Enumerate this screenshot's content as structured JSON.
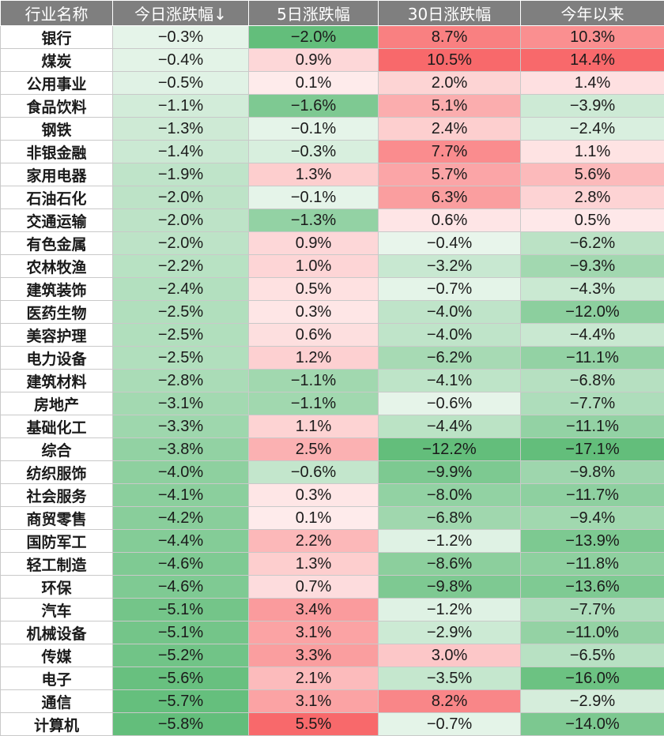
{
  "chart_data": {
    "type": "table",
    "columns": [
      "行业名称",
      "今日涨跌幅↓",
      "5日涨跌幅",
      "30日涨跌幅",
      "今年以来"
    ],
    "rows": [
      [
        "银行",
        "−0.3%",
        "−2.0%",
        "8.7%",
        "10.3%"
      ],
      [
        "煤炭",
        "−0.4%",
        "0.9%",
        "10.5%",
        "14.4%"
      ],
      [
        "公用事业",
        "−0.5%",
        "0.1%",
        "2.0%",
        "1.4%"
      ],
      [
        "食品饮料",
        "−1.1%",
        "−1.6%",
        "5.1%",
        "−3.9%"
      ],
      [
        "钢铁",
        "−1.3%",
        "−0.1%",
        "2.4%",
        "−2.4%"
      ],
      [
        "非银金融",
        "−1.4%",
        "−0.3%",
        "7.7%",
        "1.1%"
      ],
      [
        "家用电器",
        "−1.9%",
        "1.3%",
        "5.7%",
        "5.6%"
      ],
      [
        "石油石化",
        "−2.0%",
        "−0.1%",
        "6.3%",
        "2.8%"
      ],
      [
        "交通运输",
        "−2.0%",
        "−1.3%",
        "0.6%",
        "0.5%"
      ],
      [
        "有色金属",
        "−2.0%",
        "0.9%",
        "−0.4%",
        "−6.2%"
      ],
      [
        "农林牧渔",
        "−2.2%",
        "1.0%",
        "−3.2%",
        "−9.3%"
      ],
      [
        "建筑装饰",
        "−2.4%",
        "0.5%",
        "−0.7%",
        "−4.3%"
      ],
      [
        "医药生物",
        "−2.5%",
        "0.3%",
        "−4.0%",
        "−12.0%"
      ],
      [
        "美容护理",
        "−2.5%",
        "0.6%",
        "−4.0%",
        "−4.4%"
      ],
      [
        "电力设备",
        "−2.5%",
        "1.2%",
        "−6.2%",
        "−11.1%"
      ],
      [
        "建筑材料",
        "−2.8%",
        "−1.1%",
        "−4.1%",
        "−6.8%"
      ],
      [
        "房地产",
        "−3.1%",
        "−1.1%",
        "−0.6%",
        "−7.7%"
      ],
      [
        "基础化工",
        "−3.3%",
        "1.1%",
        "−4.4%",
        "−11.1%"
      ],
      [
        "综合",
        "−3.8%",
        "2.5%",
        "−12.2%",
        "−17.1%"
      ],
      [
        "纺织服饰",
        "−4.0%",
        "−0.6%",
        "−9.9%",
        "−9.8%"
      ],
      [
        "社会服务",
        "−4.1%",
        "0.3%",
        "−8.0%",
        "−11.7%"
      ],
      [
        "商贸零售",
        "−4.2%",
        "0.1%",
        "−6.8%",
        "−9.4%"
      ],
      [
        "国防军工",
        "−4.4%",
        "2.2%",
        "−1.2%",
        "−13.9%"
      ],
      [
        "轻工制造",
        "−4.6%",
        "1.3%",
        "−8.6%",
        "−11.8%"
      ],
      [
        "环保",
        "−4.6%",
        "0.7%",
        "−9.8%",
        "−13.6%"
      ],
      [
        "汽车",
        "−5.1%",
        "3.4%",
        "−1.2%",
        "−7.7%"
      ],
      [
        "机械设备",
        "−5.1%",
        "3.1%",
        "−2.9%",
        "−11.0%"
      ],
      [
        "传媒",
        "−5.2%",
        "3.3%",
        "3.0%",
        "−6.5%"
      ],
      [
        "电子",
        "−5.6%",
        "2.1%",
        "−3.5%",
        "−16.0%"
      ],
      [
        "通信",
        "−5.7%",
        "3.1%",
        "8.2%",
        "−2.9%"
      ],
      [
        "计算机",
        "−5.8%",
        "5.5%",
        "−0.7%",
        "−14.0%"
      ]
    ],
    "color_scale": {
      "positive_max": "#f8696b",
      "negative_max": "#63be7b",
      "neutral": "#ffffff"
    }
  }
}
